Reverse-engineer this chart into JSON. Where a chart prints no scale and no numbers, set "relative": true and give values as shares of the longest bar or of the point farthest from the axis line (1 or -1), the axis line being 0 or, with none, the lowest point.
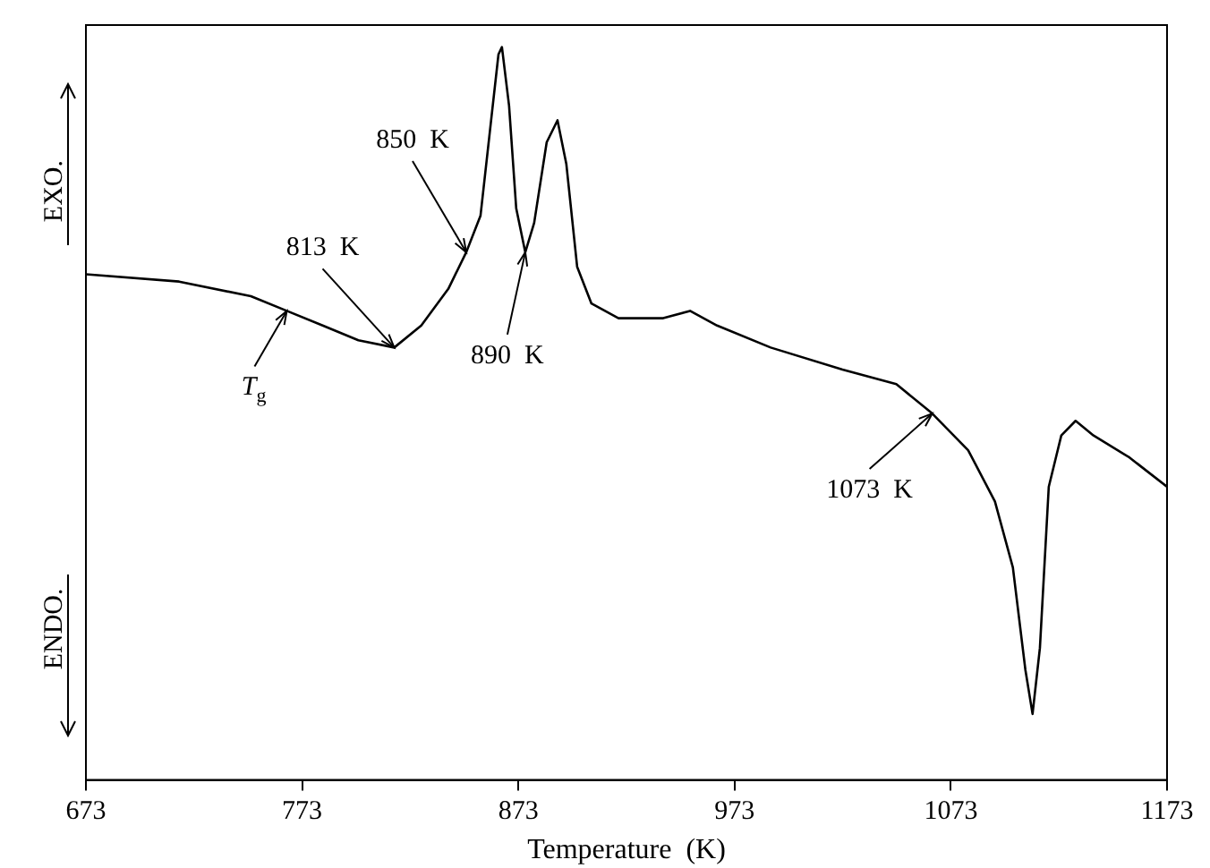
{
  "chart_data": {
    "type": "line",
    "xlabel": "Temperature  (K)",
    "relative": true,
    "color": "#000000",
    "grid": false,
    "legend": false,
    "marker": "none",
    "line_style": "solid",
    "xlim": [
      673,
      1173
    ],
    "xticks": [
      673,
      773,
      873,
      973,
      1073,
      1173
    ],
    "x": [
      673,
      716.1,
      749.3,
      765.9,
      782.5,
      799,
      815.6,
      828.1,
      840.6,
      848.9,
      855.5,
      860.4,
      863.8,
      865.4,
      868.7,
      872,
      876.2,
      880.3,
      886.1,
      891.1,
      895.2,
      900.2,
      906.8,
      919.3,
      940,
      952.4,
      964.9,
      989.7,
      1022.9,
      1047.8,
      1064.4,
      1081,
      1093.4,
      1101.7,
      1107.5,
      1110.8,
      1114.2,
      1118.3,
      1124.1,
      1130.7,
      1139,
      1155.6,
      1173
    ],
    "values": [
      0.69,
      0.68,
      0.66,
      0.64,
      0.62,
      0.6,
      0.59,
      0.62,
      0.67,
      0.72,
      0.77,
      0.9,
      0.99,
      1,
      0.92,
      0.78,
      0.72,
      0.76,
      0.87,
      0.9,
      0.84,
      0.7,
      0.65,
      0.63,
      0.63,
      0.64,
      0.62,
      0.59,
      0.56,
      0.54,
      0.5,
      0.45,
      0.38,
      0.29,
      0.15,
      0.09,
      0.18,
      0.4,
      0.47,
      0.49,
      0.47,
      0.44,
      0.4
    ],
    "annotations": [
      "EXO.",
      "ENDO.",
      {
        "text": "T$_{g}$",
        "x": 765.9,
        "y": 0.64
      },
      {
        "text": "813  K",
        "x": 815.6,
        "y": 0.59
      },
      {
        "text": "850  K",
        "x": 848.9,
        "y": 0.72
      },
      {
        "text": "890  K",
        "x": 876.2,
        "y": 0.72
      },
      {
        "text": "1073  K",
        "x": 1064.4,
        "y": 0.5
      }
    ]
  }
}
